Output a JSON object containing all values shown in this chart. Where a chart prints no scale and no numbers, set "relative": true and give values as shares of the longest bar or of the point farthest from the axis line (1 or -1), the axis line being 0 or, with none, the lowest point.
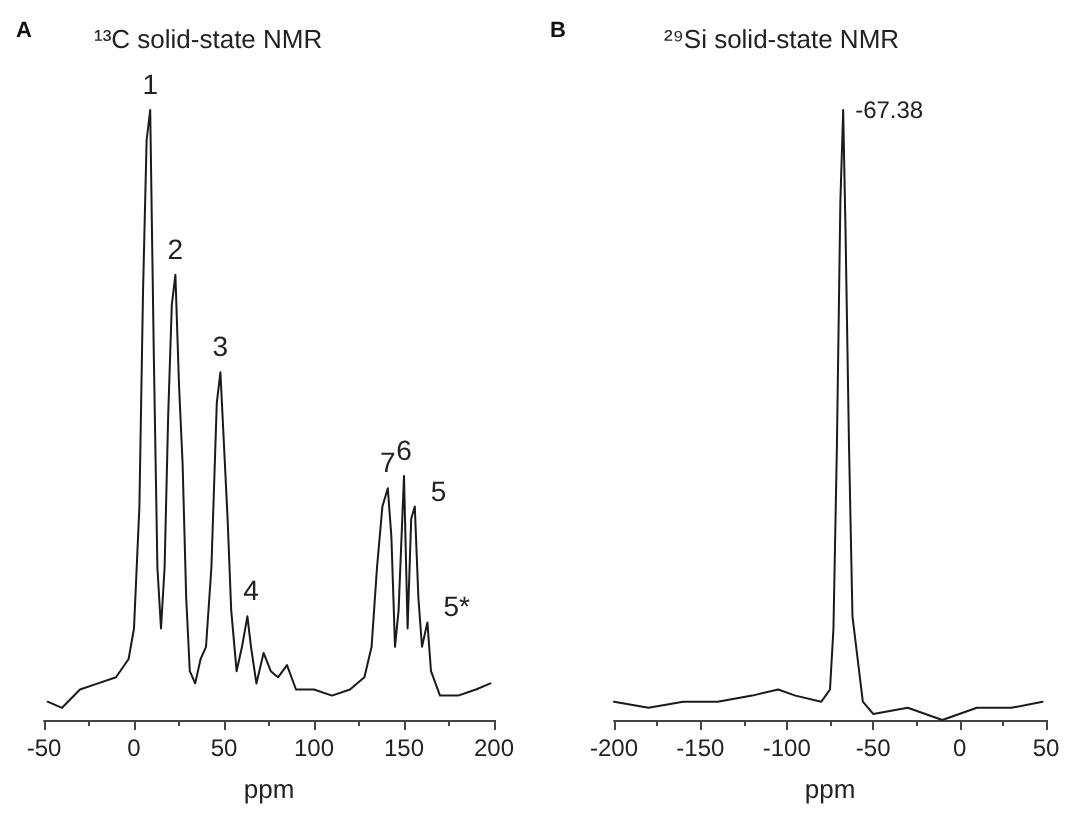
{
  "chart_data": [
    {
      "type": "line",
      "title": "¹³C solid-state NMR",
      "xlabel": "ppm",
      "relative": true,
      "xlim": [
        -50,
        200
      ],
      "xticks": [
        -50,
        0,
        50,
        100,
        150,
        200
      ],
      "annotations": [
        "A",
        {
          "text": "1",
          "x": 9,
          "y": 1.0
        },
        {
          "text": "2",
          "x": 23,
          "y": 0.73
        },
        {
          "text": "3",
          "x": 48,
          "y": 0.57
        },
        {
          "text": "4",
          "x": 65,
          "y": 0.17
        },
        {
          "text": "7",
          "x": 141,
          "y": 0.38
        },
        {
          "text": "6",
          "x": 150,
          "y": 0.4
        },
        {
          "text": "5",
          "x": 156,
          "y": 0.35
        },
        {
          "text": "5*",
          "x": 163,
          "y": 0.16
        }
      ],
      "series": [
        {
          "color": "#1a1a1a",
          "x": [
            -48,
            -40,
            -30,
            -20,
            -10,
            -3,
            0,
            3,
            5,
            7,
            9,
            11,
            13,
            15,
            17,
            19,
            21,
            23,
            25,
            27,
            29,
            31,
            34,
            37,
            40,
            43,
            46,
            48,
            50,
            52,
            54,
            57,
            60,
            63,
            65,
            68,
            72,
            76,
            80,
            85,
            90,
            100,
            110,
            120,
            128,
            132,
            135,
            138,
            141,
            143,
            145,
            147,
            150,
            152,
            154,
            156,
            158,
            160,
            163,
            165,
            170,
            180,
            190,
            198
          ],
          "values": [
            0.03,
            0.02,
            0.05,
            0.06,
            0.07,
            0.1,
            0.15,
            0.35,
            0.7,
            0.95,
            1.0,
            0.6,
            0.25,
            0.15,
            0.25,
            0.5,
            0.68,
            0.73,
            0.55,
            0.42,
            0.2,
            0.08,
            0.06,
            0.1,
            0.12,
            0.25,
            0.52,
            0.57,
            0.45,
            0.33,
            0.18,
            0.08,
            0.12,
            0.17,
            0.12,
            0.06,
            0.11,
            0.08,
            0.07,
            0.09,
            0.05,
            0.05,
            0.04,
            0.05,
            0.07,
            0.12,
            0.25,
            0.35,
            0.38,
            0.3,
            0.12,
            0.18,
            0.4,
            0.15,
            0.33,
            0.35,
            0.2,
            0.12,
            0.16,
            0.08,
            0.04,
            0.04,
            0.05,
            0.06
          ]
        }
      ]
    },
    {
      "type": "line",
      "title": "²⁹Si solid-state NMR",
      "xlabel": "ppm",
      "relative": true,
      "xlim": [
        -200,
        50
      ],
      "xticks": [
        -200,
        -150,
        -100,
        -50,
        0,
        50
      ],
      "annotations": [
        "B",
        {
          "text": "-67.38",
          "x": -67.38,
          "y": 1.0
        }
      ],
      "series": [
        {
          "color": "#1a1a1a",
          "x": [
            -200,
            -180,
            -160,
            -140,
            -120,
            -105,
            -95,
            -80,
            -75,
            -73,
            -71,
            -69,
            -67.38,
            -66,
            -64,
            -62,
            -59,
            -56,
            -50,
            -30,
            -10,
            10,
            30,
            48
          ],
          "values": [
            0.03,
            0.02,
            0.03,
            0.03,
            0.04,
            0.05,
            0.04,
            0.03,
            0.05,
            0.15,
            0.45,
            0.85,
            1.0,
            0.8,
            0.45,
            0.17,
            0.1,
            0.03,
            0.01,
            0.02,
            0.0,
            0.02,
            0.02,
            0.03
          ]
        }
      ]
    }
  ]
}
